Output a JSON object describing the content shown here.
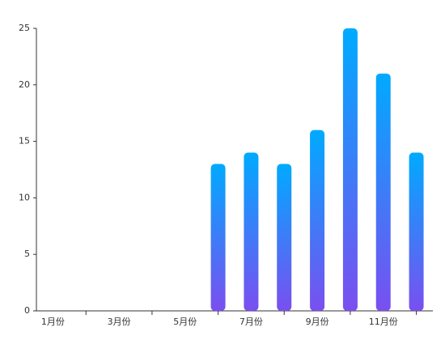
{
  "chart_data": {
    "type": "bar",
    "categories": [
      "1月份",
      null,
      "3月份",
      null,
      "5月份",
      null,
      "7月份",
      null,
      "9月份",
      null,
      "11月份",
      null
    ],
    "values": [
      0,
      0,
      0,
      0,
      0,
      13,
      14,
      13,
      16,
      25,
      21,
      14
    ],
    "color": [
      "#00aaff",
      "#7a4ff0"
    ],
    "ylim": [
      0,
      25
    ],
    "yticks": [
      0,
      5,
      10,
      15,
      20,
      25
    ],
    "grid": false
  }
}
